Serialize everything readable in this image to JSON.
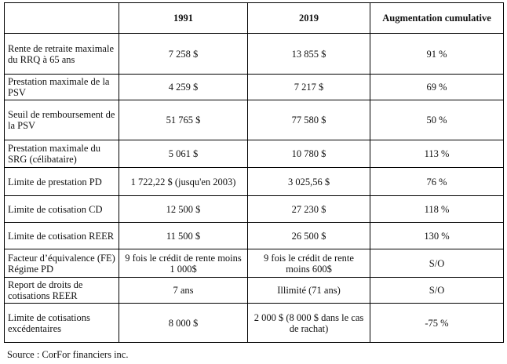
{
  "table": {
    "headers": [
      "",
      "1991",
      "2019",
      "Augmentation cumulative"
    ],
    "rows": [
      [
        "Rente de retraite maximale du RRQ à 65 ans",
        "7 258 $",
        "13 855 $",
        "91 %"
      ],
      [
        "Prestation maximale de la PSV",
        "4 259 $",
        "7 217 $",
        "69 %"
      ],
      [
        "Seuil de remboursement de la PSV",
        "51 765 $",
        "77 580 $",
        "50 %"
      ],
      [
        "Prestation maximale du SRG (célibataire)",
        "5 061 $",
        "10 780 $",
        "113 %"
      ],
      [
        "Limite de prestation PD",
        "1 722,22 $ (jusqu'en 2003)",
        "3 025,56 $",
        "76 %"
      ],
      [
        "Limite de cotisation CD",
        "12 500 $",
        "27 230 $",
        "118 %"
      ],
      [
        "Limite de cotisation REER",
        "11 500 $",
        "26 500 $",
        "130 %"
      ],
      [
        "Facteur d’équivalence (FE)  Régime PD",
        "9  fois le crédit de rente moins 1 000$",
        "9  fois le crédit de rente moins 600$",
        "S/O"
      ],
      [
        "Report de droits de cotisations REER",
        "7 ans",
        "Illimité (71 ans)",
        "S/O"
      ],
      [
        "Limite de cotisations excédentaires",
        "8 000 $",
        "2 000 $ (8 000 $ dans le cas de rachat)",
        "-75 %"
      ]
    ]
  },
  "source": "Source : CorFor financiers inc."
}
